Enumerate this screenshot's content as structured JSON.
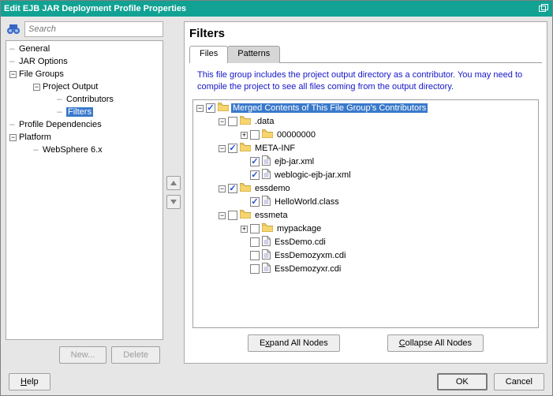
{
  "window": {
    "title": "Edit EJB JAR Deployment Profile Properties"
  },
  "search": {
    "placeholder": "Search"
  },
  "nav": {
    "items": [
      {
        "label": "General",
        "depth": 0,
        "toggle": "--",
        "selected": false
      },
      {
        "label": "JAR Options",
        "depth": 0,
        "toggle": "--",
        "selected": false
      },
      {
        "label": "File Groups",
        "depth": 0,
        "toggle": "-",
        "selected": false
      },
      {
        "label": "Project Output",
        "depth": 1,
        "toggle": "-",
        "selected": false
      },
      {
        "label": "Contributors",
        "depth": 2,
        "toggle": "--",
        "selected": false
      },
      {
        "label": "Filters",
        "depth": 2,
        "toggle": "--",
        "selected": true
      },
      {
        "label": "Profile Dependencies",
        "depth": 0,
        "toggle": "--",
        "selected": false
      },
      {
        "label": "Platform",
        "depth": 0,
        "toggle": "-",
        "selected": false
      },
      {
        "label": "WebSphere 6.x",
        "depth": 1,
        "toggle": "--",
        "selected": false
      }
    ]
  },
  "left_buttons": {
    "new": "New...",
    "delete": "Delete"
  },
  "right": {
    "heading": "Filters",
    "tabs": {
      "files": "Files",
      "patterns": "Patterns",
      "active": 0
    },
    "note": "This file group includes the project output directory as a contributor.  You may need to compile the project to see all files coming from the output directory.",
    "actions": {
      "expand_pre": "E",
      "expand_u": "x",
      "expand_post": "pand All Nodes",
      "collapse_pre": "",
      "collapse_u": "C",
      "collapse_post": "ollapse All Nodes"
    }
  },
  "file_tree": [
    {
      "depth": 0,
      "toggle": "-",
      "cb": "checked",
      "icon": "folder",
      "label": "Merged Contents of This File Group's Contributors",
      "selected": true
    },
    {
      "depth": 1,
      "toggle": "-",
      "cb": "unchecked",
      "icon": "folder",
      "label": ".data"
    },
    {
      "depth": 2,
      "toggle": "+",
      "cb": "unchecked",
      "icon": "folder",
      "label": "00000000"
    },
    {
      "depth": 1,
      "toggle": "-",
      "cb": "checked",
      "icon": "folder",
      "label": "META-INF"
    },
    {
      "depth": 2,
      "toggle": "",
      "cb": "checked",
      "icon": "file",
      "label": "ejb-jar.xml"
    },
    {
      "depth": 2,
      "toggle": "",
      "cb": "checked",
      "icon": "file",
      "label": "weblogic-ejb-jar.xml"
    },
    {
      "depth": 1,
      "toggle": "-",
      "cb": "checked",
      "icon": "folder",
      "label": "essdemo"
    },
    {
      "depth": 2,
      "toggle": "",
      "cb": "checked",
      "icon": "file",
      "label": "HelloWorld.class"
    },
    {
      "depth": 1,
      "toggle": "-",
      "cb": "unchecked",
      "icon": "folder",
      "label": "essmeta"
    },
    {
      "depth": 2,
      "toggle": "+",
      "cb": "unchecked",
      "icon": "folder",
      "label": "mypackage"
    },
    {
      "depth": 2,
      "toggle": "",
      "cb": "unchecked",
      "icon": "file",
      "label": "EssDemo.cdi"
    },
    {
      "depth": 2,
      "toggle": "",
      "cb": "unchecked",
      "icon": "file",
      "label": "EssDemozyxm.cdi"
    },
    {
      "depth": 2,
      "toggle": "",
      "cb": "unchecked",
      "icon": "file",
      "label": "EssDemozyxr.cdi"
    }
  ],
  "footer": {
    "help_u": "H",
    "help_post": "elp",
    "ok": "OK",
    "cancel": "Cancel"
  },
  "colors": {
    "titlebar": "#11a293",
    "selection": "#3979cb",
    "note_text": "#1616c8",
    "panel_bg": "#e6e6e6",
    "folder_fill": "#f7d56e",
    "folder_stroke": "#b08820"
  }
}
